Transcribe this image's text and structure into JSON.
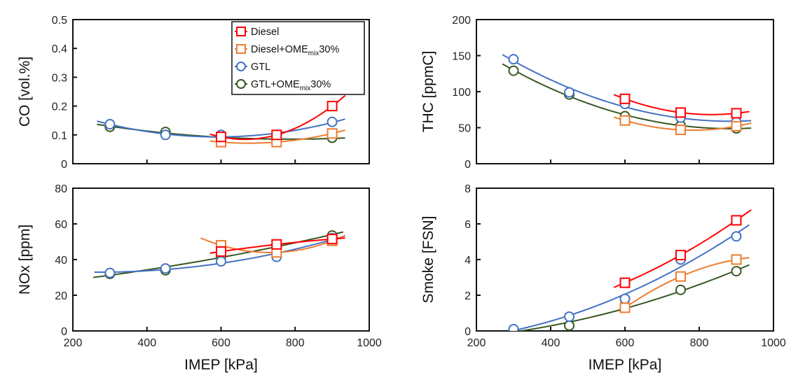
{
  "chart_data": [
    {
      "id": "co",
      "type": "line",
      "title": "",
      "xlabel": "",
      "ylabel": "CO [vol.%]",
      "xlim": [
        200,
        1000
      ],
      "ylim": [
        0,
        0.5
      ],
      "xticks": [
        200,
        400,
        600,
        800,
        1000
      ],
      "yticks": [
        0,
        0.1,
        0.2,
        0.3,
        0.4,
        0.5
      ],
      "ytick_labels": [
        "0",
        "0.1",
        "0.2",
        "0.3",
        "0.4",
        "0.5"
      ],
      "show_xtick_labels": false,
      "grid": false,
      "legend": "top-right",
      "series": [
        {
          "name": "Diesel",
          "marker": "square",
          "x": [
            600,
            750,
            900
          ],
          "y": [
            0.093,
            0.1,
            0.2
          ],
          "fit": [
            570,
            935
          ]
        },
        {
          "name": "Diesel+OMEmix30%",
          "marker": "square",
          "x": [
            600,
            750,
            900
          ],
          "y": [
            0.075,
            0.075,
            0.105
          ],
          "fit": [
            570,
            935
          ]
        },
        {
          "name": "GTL",
          "marker": "circle",
          "x": [
            300,
            450,
            600,
            750,
            900
          ],
          "y": [
            0.137,
            0.1,
            0.1,
            0.1,
            0.145
          ],
          "fit": [
            265,
            935
          ]
        },
        {
          "name": "GTL+OMEmix30%",
          "marker": "circle",
          "x": [
            300,
            450,
            600,
            750,
            900
          ],
          "y": [
            0.128,
            0.11,
            0.093,
            0.08,
            0.09
          ],
          "fit": [
            265,
            935
          ]
        }
      ]
    },
    {
      "id": "thc",
      "type": "line",
      "title": "",
      "xlabel": "",
      "ylabel": "THC [ppmC]",
      "xlim": [
        200,
        1000
      ],
      "ylim": [
        0,
        200
      ],
      "xticks": [
        200,
        400,
        600,
        800,
        1000
      ],
      "yticks": [
        0,
        50,
        100,
        150,
        200
      ],
      "ytick_labels": [
        "0",
        "50",
        "100",
        "150",
        "200"
      ],
      "show_xtick_labels": false,
      "grid": false,
      "series": [
        {
          "name": "Diesel",
          "marker": "square",
          "x": [
            600,
            750,
            900
          ],
          "y": [
            90,
            71,
            70
          ],
          "fit": [
            570,
            935
          ]
        },
        {
          "name": "Diesel+OMEmix30%",
          "marker": "square",
          "x": [
            600,
            750,
            900
          ],
          "y": [
            60,
            47,
            52
          ],
          "fit": [
            570,
            940
          ]
        },
        {
          "name": "GTL",
          "marker": "circle",
          "x": [
            300,
            450,
            600,
            750,
            900
          ],
          "y": [
            145,
            99,
            83,
            64,
            58
          ],
          "fit": [
            270,
            940
          ]
        },
        {
          "name": "GTL+OMEmix30%",
          "marker": "circle",
          "x": [
            300,
            450,
            600,
            750,
            900
          ],
          "y": [
            129,
            96,
            66,
            53,
            49
          ],
          "fit": [
            270,
            940
          ]
        }
      ]
    },
    {
      "id": "nox",
      "type": "line",
      "title": "",
      "xlabel": "IMEP [kPa]",
      "ylabel": "NOx [ppm]",
      "xlim": [
        200,
        1000
      ],
      "ylim": [
        0,
        80
      ],
      "xticks": [
        200,
        400,
        600,
        800,
        1000
      ],
      "xtick_labels": [
        "200",
        "400",
        "600",
        "800",
        "1000"
      ],
      "yticks": [
        0,
        20,
        40,
        60,
        80
      ],
      "ytick_labels": [
        "0",
        "20",
        "40",
        "60",
        "80"
      ],
      "show_xtick_labels": true,
      "grid": false,
      "series": [
        {
          "name": "Diesel",
          "marker": "square",
          "x": [
            600,
            750,
            900
          ],
          "y": [
            44.5,
            48.5,
            51.5
          ],
          "fit": [
            570,
            935
          ]
        },
        {
          "name": "Diesel+OMEmix30%",
          "marker": "square",
          "x": [
            600,
            750,
            900
          ],
          "y": [
            48,
            44,
            50.5
          ],
          "fit": [
            545,
            935
          ]
        },
        {
          "name": "GTL",
          "marker": "circle",
          "x": [
            300,
            450,
            600,
            750,
            900
          ],
          "y": [
            32.5,
            35,
            39,
            41.5,
            52
          ],
          "fit": [
            258,
            935
          ]
        },
        {
          "name": "GTL+OMEmix30%",
          "marker": "circle",
          "x": [
            300,
            450,
            600,
            750,
            900
          ],
          "y": [
            32,
            34,
            42,
            48,
            53.5
          ],
          "fit": [
            255,
            930
          ]
        }
      ]
    },
    {
      "id": "smoke",
      "type": "line",
      "title": "",
      "xlabel": "IMEP [kPa]",
      "ylabel": "Smoke [FSN]",
      "xlim": [
        200,
        1000
      ],
      "ylim": [
        0,
        8
      ],
      "xticks": [
        200,
        400,
        600,
        800,
        1000
      ],
      "xtick_labels": [
        "200",
        "400",
        "600",
        "800",
        "1000"
      ],
      "yticks": [
        0,
        2,
        4,
        6,
        8
      ],
      "ytick_labels": [
        "0",
        "2",
        "4",
        "6",
        "8"
      ],
      "show_xtick_labels": true,
      "grid": false,
      "series": [
        {
          "name": "Diesel",
          "marker": "square",
          "x": [
            600,
            750,
            900
          ],
          "y": [
            2.7,
            4.25,
            6.2
          ],
          "fit": [
            570,
            940
          ]
        },
        {
          "name": "Diesel+OMEmix30%",
          "marker": "square",
          "x": [
            600,
            750,
            900
          ],
          "y": [
            1.3,
            3.05,
            4.0
          ],
          "fit": [
            585,
            935
          ]
        },
        {
          "name": "GTL",
          "marker": "circle",
          "x": [
            300,
            450,
            600,
            750,
            900
          ],
          "y": [
            0.1,
            0.8,
            1.8,
            4.0,
            5.3
          ],
          "fit": [
            285,
            935
          ]
        },
        {
          "name": "GTL+OMEmix30%",
          "marker": "circle",
          "x": [
            300,
            450,
            600,
            750,
            900
          ],
          "y": [
            0.02,
            0.3,
            1.35,
            2.3,
            3.35
          ],
          "fit": [
            280,
            935
          ]
        }
      ]
    }
  ],
  "legend": {
    "entries": [
      {
        "name": "Diesel",
        "label": "Diesel",
        "sub": "",
        "suffix": "",
        "marker": "square",
        "color": "#ff0000"
      },
      {
        "name": "Diesel+OMEmix30%",
        "label": "Diesel+OME",
        "sub": "mix",
        "suffix": "30%",
        "marker": "square",
        "color": "#ed7d31"
      },
      {
        "name": "GTL",
        "label": "GTL",
        "sub": "",
        "suffix": "",
        "marker": "circle",
        "color": "#4472c4"
      },
      {
        "name": "GTL+OMEmix30%",
        "label": "GTL+OME",
        "sub": "mix",
        "suffix": "30%",
        "marker": "circle",
        "color": "#385723"
      }
    ]
  },
  "colors": {
    "Diesel": "#ff0000",
    "Diesel+OMEmix30%": "#ed7d31",
    "GTL": "#4472c4",
    "GTL+OMEmix30%": "#385723",
    "axis": "#111111"
  }
}
